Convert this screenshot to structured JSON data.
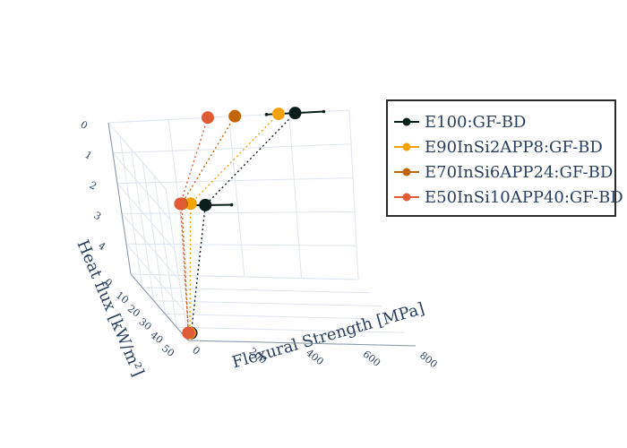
{
  "chart_data": {
    "type": "line-3d",
    "axes": {
      "x": {
        "title": "Flexural Strength [MPa]",
        "ticks": [
          0,
          200,
          400,
          600,
          800
        ]
      },
      "y": {
        "title": "Heat flux [kW/m²]",
        "ticks": [
          0,
          10,
          20,
          30,
          40,
          50
        ]
      },
      "z": {
        "ticks": [
          0,
          1,
          2,
          3,
          4
        ]
      }
    },
    "grid": true,
    "legend_position": "top-right",
    "series": [
      {
        "name": "E100:GF-BD",
        "color": "#0b1f1a",
        "points": [
          {
            "x": 620,
            "y": 0,
            "z": 0,
            "err_x": 95
          },
          {
            "x": 290,
            "y": 0,
            "z": 2.75,
            "err_x": 90
          },
          {
            "x": 15,
            "y": 50,
            "z": 4.75,
            "err_x": 15
          }
        ]
      },
      {
        "name": "E90InSi2APP8:GF-BD",
        "color": "#f5a20a",
        "points": [
          {
            "x": 565,
            "y": 0,
            "z": 0,
            "err_x": 0
          },
          {
            "x": 240,
            "y": 0,
            "z": 2.7,
            "err_x": 0
          },
          {
            "x": 10,
            "y": 50,
            "z": 4.75,
            "err_x": 0
          }
        ]
      },
      {
        "name": "E70InSi6APP24:GF-BD",
        "color": "#c26508",
        "points": [
          {
            "x": 420,
            "y": 0,
            "z": 0,
            "err_x": 0
          },
          {
            "x": 210,
            "y": 0,
            "z": 2.7,
            "err_x": 0
          },
          {
            "x": 5,
            "y": 50,
            "z": 4.75,
            "err_x": 0
          }
        ]
      },
      {
        "name": "E50InSi10APP40:GF-BD",
        "color": "#e05a35",
        "points": [
          {
            "x": 330,
            "y": 0,
            "z": 0,
            "err_x": 0
          },
          {
            "x": 205,
            "y": 0,
            "z": 2.7,
            "err_x": 0
          },
          {
            "x": 5,
            "y": 50,
            "z": 4.75,
            "err_x": 0
          }
        ]
      }
    ]
  }
}
